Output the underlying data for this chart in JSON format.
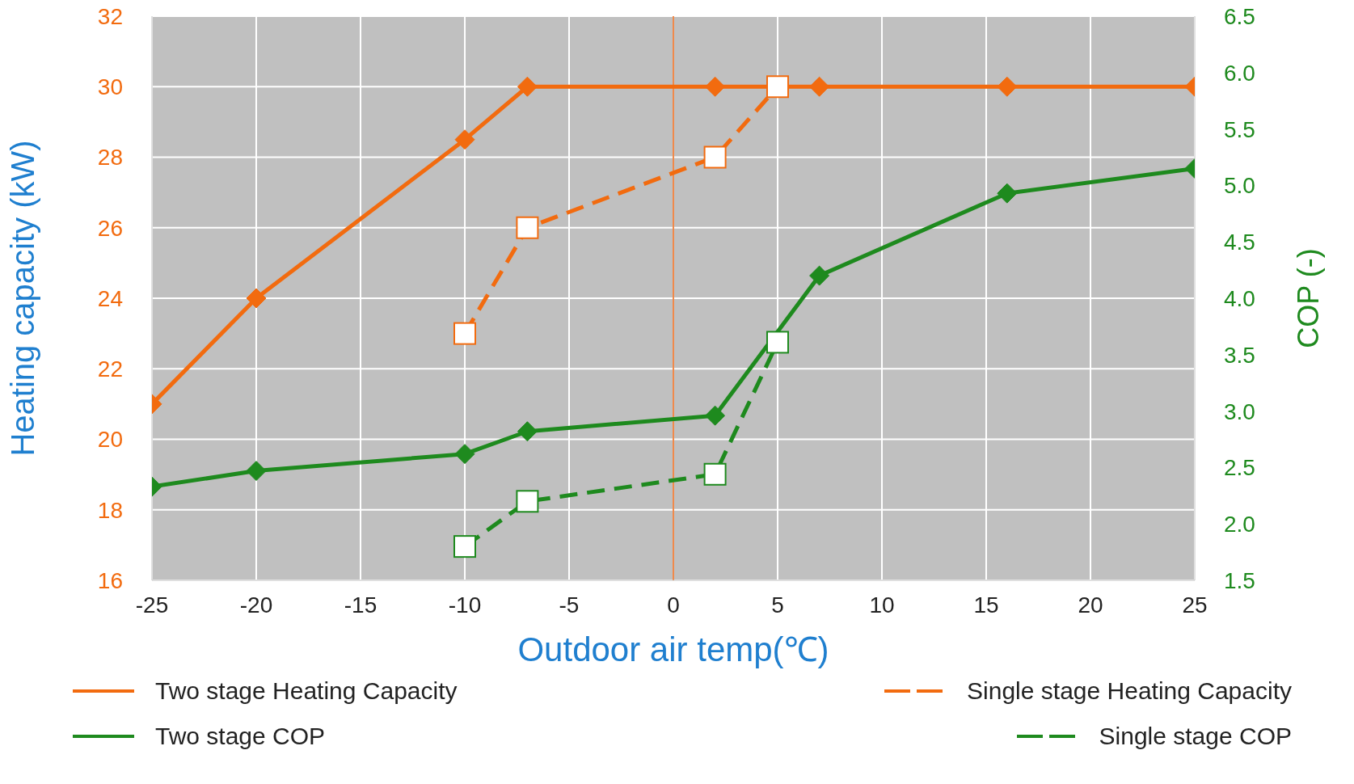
{
  "chart_data": {
    "type": "line",
    "xlabel": "Outdoor air temp(℃)",
    "ylabel": "Heating capacity (kW)",
    "y2label": "COP (-)",
    "xlim": [
      -25,
      25
    ],
    "xticks": [
      -25,
      -20,
      -15,
      -10,
      -5,
      0,
      5,
      10,
      15,
      20,
      25
    ],
    "ylim": [
      16,
      32
    ],
    "yticks": [
      16,
      18,
      20,
      22,
      24,
      26,
      28,
      30,
      32
    ],
    "y2lim": [
      1.5,
      6.5
    ],
    "y2ticks": [
      1.5,
      {
        "value": 2,
        "label": "2.0"
      },
      2.5,
      {
        "value": 3,
        "label": "3.0"
      },
      3.5,
      {
        "value": 4,
        "label": "4.0"
      },
      4.5,
      {
        "value": 5,
        "label": "5.0"
      },
      5.5,
      {
        "value": 6,
        "label": "6.0"
      },
      6.5
    ],
    "grid": true,
    "legend": "bottom",
    "ref_lines": [
      {
        "axis": "x",
        "value": 0,
        "color": "#f08a4b"
      }
    ],
    "series": [
      {
        "name": "Two stage Heating Capacity",
        "color": "#f26b0f",
        "marker": "diamond",
        "line_style": "solid",
        "x": [
          -25,
          -20,
          -10,
          -7,
          2,
          7,
          16,
          25
        ],
        "values": [
          21,
          24,
          28.5,
          30,
          30,
          30,
          30,
          30
        ]
      },
      {
        "name": "Single stage Heating Capacity",
        "color": "#f26b0f",
        "marker": "square",
        "line_style": "dashed",
        "x": [
          -10,
          -7,
          2,
          5
        ],
        "values": [
          23,
          26,
          28,
          30
        ]
      },
      {
        "name": "Two stage COP",
        "color": "#1e8a1e",
        "marker": "diamond",
        "line_style": "solid",
        "axis": "y2",
        "x": [
          -25,
          -20,
          -10,
          -7,
          2,
          7,
          16,
          25
        ],
        "values": [
          2.33,
          2.47,
          2.62,
          2.82,
          2.96,
          4.2,
          4.93,
          5.15
        ]
      },
      {
        "name": "Single stage COP",
        "color": "#1e8a1e",
        "marker": "square",
        "line_style": "dashed",
        "axis": "y2",
        "x": [
          -10,
          -7,
          2,
          5
        ],
        "values": [
          1.8,
          2.2,
          2.44,
          3.61
        ]
      }
    ]
  }
}
